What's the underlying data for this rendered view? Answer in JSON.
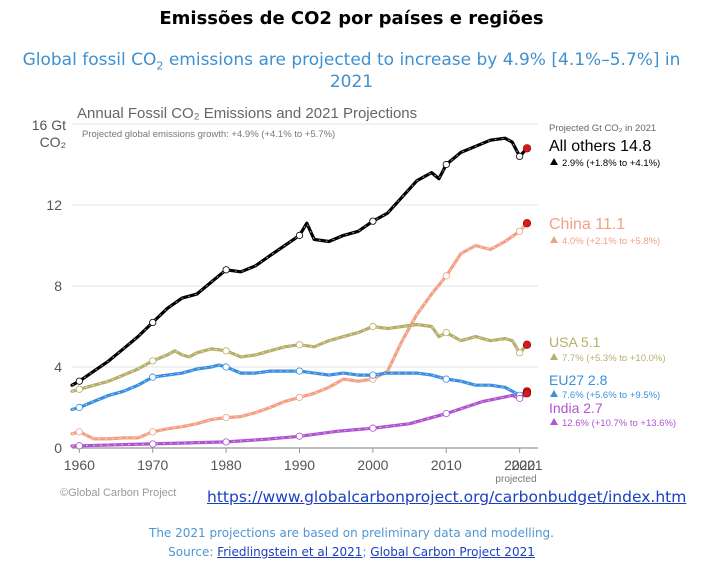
{
  "header": {
    "title": "Emissões de CO2 por países e regiões",
    "subtitle_pre": "Global fossil CO",
    "subtitle_sub": "2",
    "subtitle_post": " emissions are projected to increase by 4.9% [4.1%–5.7%] in 2021"
  },
  "chart_data": {
    "type": "line",
    "title": "Annual Fossil CO₂ Emissions and 2021 Projections",
    "subtitle": "Projected global emissions growth: +4.9% (+4.1% to +5.7%)",
    "ylabel_line1": "16 Gt",
    "ylabel_line2": "CO₂",
    "ylim": [
      0,
      16
    ],
    "yticks": [
      "0",
      "4",
      "8",
      "12"
    ],
    "xlim": [
      1959,
      2022.5
    ],
    "xticks": [
      "1960",
      "1970",
      "1980",
      "1990",
      "2000",
      "2010",
      "2020"
    ],
    "x_tick_values": [
      1960,
      1970,
      1980,
      1990,
      2000,
      2010,
      2020
    ],
    "projected_tick": "2021",
    "projected_label": "projected",
    "legend_header": "Projected Gt CO₂ in 2021",
    "grid": "horizontal",
    "credit": "©Global Carbon Project",
    "series": [
      {
        "name": "All others",
        "value": "14.8",
        "growth": "2.9% (+1.8% to +4.1%)",
        "color": "#000000",
        "x": [
          1959,
          1960,
          1962,
          1964,
          1966,
          1968,
          1970,
          1972,
          1974,
          1976,
          1978,
          1980,
          1982,
          1984,
          1986,
          1988,
          1990,
          1991,
          1992,
          1994,
          1996,
          1998,
          2000,
          2002,
          2004,
          2006,
          2008,
          2009,
          2010,
          2012,
          2014,
          2016,
          2018,
          2019,
          2020,
          2021
        ],
        "y": [
          3.1,
          3.3,
          3.8,
          4.3,
          4.9,
          5.5,
          6.2,
          6.9,
          7.4,
          7.6,
          8.2,
          8.8,
          8.7,
          9.0,
          9.5,
          10.0,
          10.5,
          11.1,
          10.3,
          10.2,
          10.5,
          10.7,
          11.2,
          11.6,
          12.4,
          13.2,
          13.6,
          13.3,
          14.0,
          14.6,
          14.9,
          15.2,
          15.3,
          15.1,
          14.4,
          14.8
        ],
        "proj": 14.8
      },
      {
        "name": "China",
        "value": "11.1",
        "growth": "4.0% (+2.1% to +5.8%)",
        "color": "#f3a184",
        "x": [
          1959,
          1960,
          1962,
          1964,
          1966,
          1968,
          1970,
          1972,
          1974,
          1976,
          1978,
          1980,
          1982,
          1984,
          1986,
          1988,
          1990,
          1992,
          1994,
          1996,
          1998,
          2000,
          2002,
          2004,
          2006,
          2008,
          2010,
          2012,
          2014,
          2016,
          2018,
          2020,
          2021
        ],
        "y": [
          0.7,
          0.8,
          0.45,
          0.45,
          0.5,
          0.5,
          0.8,
          0.95,
          1.05,
          1.2,
          1.4,
          1.5,
          1.55,
          1.75,
          2.0,
          2.3,
          2.5,
          2.7,
          3.0,
          3.4,
          3.3,
          3.4,
          3.8,
          5.3,
          6.6,
          7.6,
          8.5,
          9.6,
          10.0,
          9.8,
          10.2,
          10.7,
          11.1
        ],
        "proj": 11.1
      },
      {
        "name": "USA",
        "value": "5.1",
        "growth": "7.7% (+5.3% to +10.0%)",
        "color": "#b8ae6a",
        "x": [
          1959,
          1960,
          1962,
          1964,
          1966,
          1968,
          1970,
          1972,
          1973,
          1974,
          1975,
          1976,
          1978,
          1980,
          1982,
          1984,
          1986,
          1988,
          1990,
          1992,
          1994,
          1996,
          1998,
          2000,
          2002,
          2004,
          2006,
          2008,
          2009,
          2010,
          2012,
          2014,
          2016,
          2018,
          2019,
          2020,
          2021
        ],
        "y": [
          2.8,
          2.9,
          3.1,
          3.3,
          3.6,
          3.9,
          4.3,
          4.6,
          4.8,
          4.6,
          4.5,
          4.7,
          4.9,
          4.8,
          4.5,
          4.6,
          4.8,
          5.0,
          5.1,
          5.0,
          5.3,
          5.5,
          5.7,
          6.0,
          5.9,
          6.0,
          6.1,
          6.0,
          5.5,
          5.7,
          5.3,
          5.5,
          5.3,
          5.4,
          5.3,
          4.7,
          5.1
        ],
        "proj": 5.1
      },
      {
        "name": "EU27",
        "value": "2.8",
        "growth": "7.6% (+5.6% to +9.5%)",
        "color": "#3b8fde",
        "x": [
          1959,
          1960,
          1962,
          1964,
          1966,
          1968,
          1970,
          1972,
          1974,
          1976,
          1978,
          1979,
          1980,
          1982,
          1984,
          1986,
          1988,
          1990,
          1992,
          1994,
          1996,
          1998,
          2000,
          2002,
          2004,
          2006,
          2008,
          2010,
          2012,
          2014,
          2016,
          2018,
          2020,
          2021
        ],
        "y": [
          1.9,
          2.0,
          2.3,
          2.6,
          2.8,
          3.1,
          3.5,
          3.6,
          3.7,
          3.9,
          4.0,
          4.1,
          4.0,
          3.7,
          3.7,
          3.8,
          3.8,
          3.8,
          3.7,
          3.6,
          3.7,
          3.6,
          3.6,
          3.7,
          3.7,
          3.7,
          3.6,
          3.4,
          3.3,
          3.1,
          3.1,
          3.0,
          2.6,
          2.8
        ],
        "proj": 2.8
      },
      {
        "name": "India",
        "value": "2.7",
        "growth": "12.6% (+10.7% to +13.6%)",
        "color": "#b054d1",
        "x": [
          1959,
          1960,
          1965,
          1970,
          1975,
          1980,
          1985,
          1990,
          1995,
          2000,
          2005,
          2010,
          2015,
          2019,
          2020,
          2021
        ],
        "y": [
          0.1,
          0.11,
          0.16,
          0.2,
          0.25,
          0.3,
          0.42,
          0.58,
          0.82,
          0.98,
          1.2,
          1.7,
          2.3,
          2.6,
          2.45,
          2.7
        ],
        "proj": 2.7
      }
    ]
  },
  "links": {
    "url": "https://www.globalcarbonproject.org/carbonbudget/index.htm"
  },
  "footer": {
    "line1": "The 2021 projections are based on preliminary data and modelling.",
    "source_label": "Source: ",
    "source_link1": "Friedlingstein et al 2021",
    "separator": "; ",
    "source_link2": "Global Carbon Project 2021"
  }
}
